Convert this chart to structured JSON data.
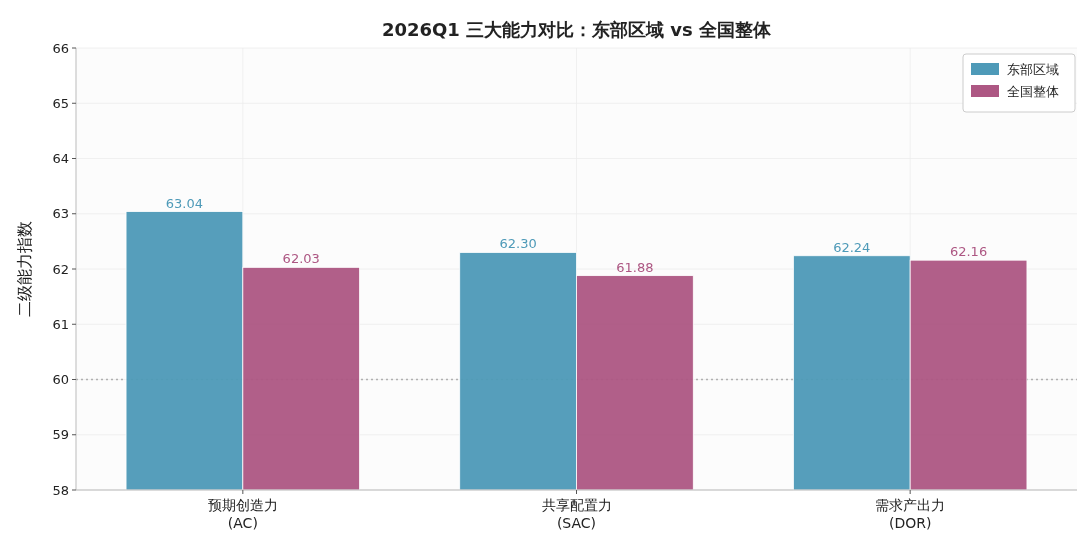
{
  "chart_data": {
    "type": "bar",
    "title": "2026Q1 三大能力对比：东部区域 vs 全国整体",
    "ylabel": "二级能力指数",
    "categories": [
      "预期创造力\n(AC)",
      "共享配置力\n(SAC)",
      "需求产出力\n(DOR)"
    ],
    "series": [
      {
        "name": "东部区域",
        "color": "#4e9ab8",
        "values": [
          63.04,
          62.3,
          62.24
        ],
        "value_labels": [
          "63.04",
          "62.30",
          "62.24"
        ]
      },
      {
        "name": "全国整体",
        "color": "#ad5783",
        "values": [
          62.03,
          61.88,
          62.16
        ],
        "value_labels": [
          "62.03",
          "61.88",
          "62.16"
        ]
      }
    ],
    "ylim": [
      58,
      66
    ],
    "yticks": [
      58,
      59,
      60,
      61,
      62,
      63,
      64,
      65,
      66
    ],
    "grid": true,
    "legend": "top right",
    "ref_lines": [
      {
        "axis": "y",
        "value": 60,
        "color": "#b0b0b0",
        "line_style": "dotted"
      }
    ]
  }
}
